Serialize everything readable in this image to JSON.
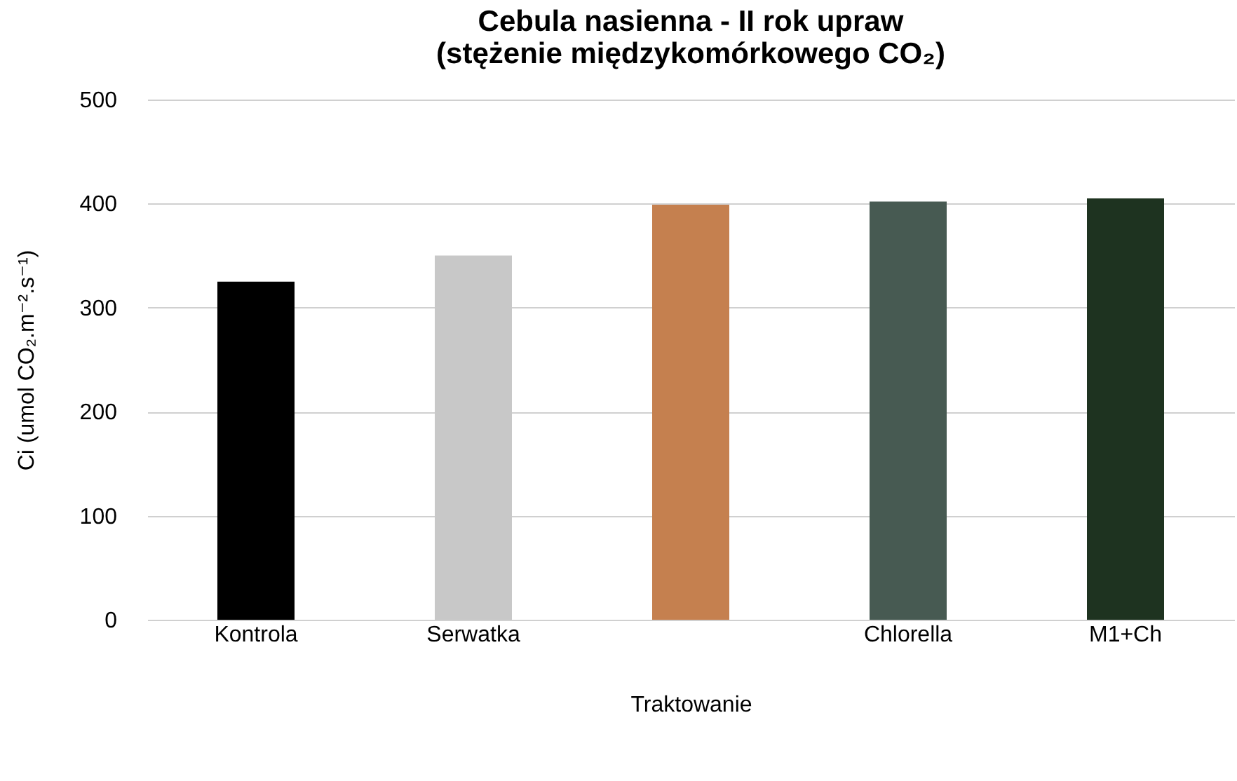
{
  "chart_data": {
    "type": "bar",
    "title": [
      "Cebula nasienna - II rok upraw",
      "(stężenie międzykomórkowego CO₂)"
    ],
    "xlabel": "Traktowanie",
    "ylabel": "Ci (umol CO₂.m⁻².s⁻¹)",
    "categories": [
      "Kontrola",
      "Serwatka",
      null,
      "Chlorella",
      "M1+Ch"
    ],
    "values": [
      325,
      350,
      399,
      402,
      405
    ],
    "colors": [
      "#000000",
      "#c8c8c8",
      "#c5804f",
      "#475a52",
      "#1e3320"
    ],
    "ylim": [
      0,
      500
    ],
    "yticks": [
      0,
      100,
      200,
      300,
      400,
      500
    ],
    "grid": "y",
    "legend": false
  }
}
